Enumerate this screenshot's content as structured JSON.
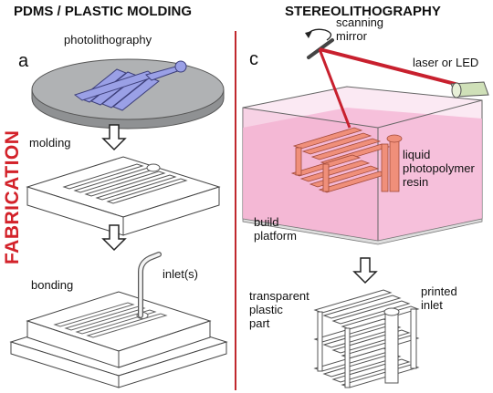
{
  "headers": {
    "left": "PDMS / PLASTIC MOLDING",
    "right": "STEREOLITHOGRAPHY"
  },
  "side_label": "FABRICATION",
  "panel_letters": {
    "left": "a",
    "right": "c"
  },
  "left_panel": {
    "photolithography": "photolithography",
    "molding": "molding",
    "bonding": "bonding",
    "inlet": "inlet(s)"
  },
  "right_panel": {
    "scanning_mirror": "scanning\nmirror",
    "laser": "laser or LED",
    "resin": "liquid\nphotopolymer\nresin",
    "platform": "build\nplatform",
    "transparent_part": "transparent\nplastic\npart",
    "printed_inlet": "printed\ninlet"
  },
  "colors": {
    "divider": "#c0282d",
    "fabrication": "#d3222a",
    "wafer": "#a9abad",
    "feature": "#9aa0e6",
    "resin": "#f4b8d6",
    "print": "#f08f7a",
    "laser": "#c8202e"
  }
}
